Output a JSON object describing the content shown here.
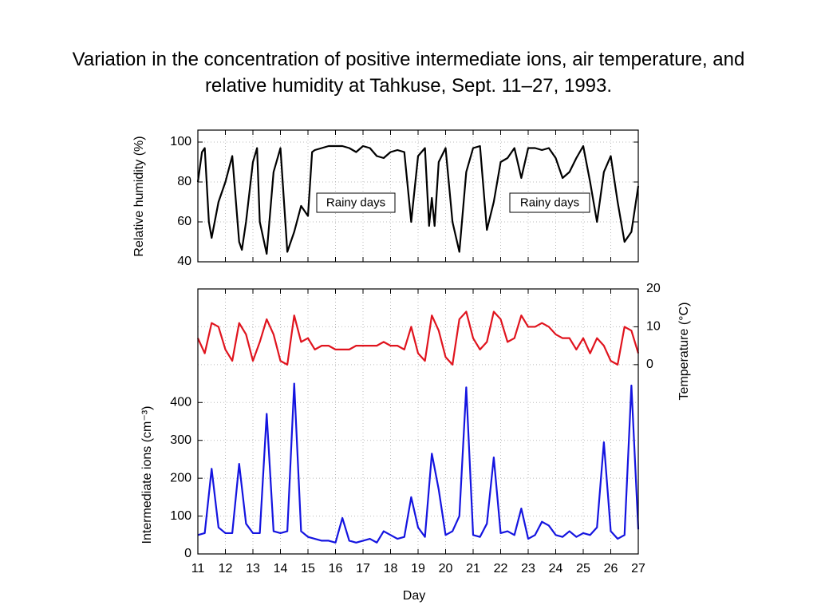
{
  "chart_data": [
    {
      "type": "line",
      "title": "Variation in the concentration of positive intermediate ions, air temperature, and relative humidity at Tahkuse, Sept. 11–27, 1993.",
      "ylabel": "Relative humidity  (%)",
      "x": [
        11,
        11.15,
        11.25,
        11.4,
        11.5,
        11.75,
        12,
        12.25,
        12.5,
        12.6,
        12.75,
        13,
        13.15,
        13.25,
        13.5,
        13.75,
        14,
        14.25,
        14.5,
        14.75,
        15,
        15.15,
        15.25,
        15.5,
        15.75,
        16,
        16.25,
        16.5,
        16.75,
        17,
        17.25,
        17.5,
        17.75,
        18,
        18.25,
        18.5,
        18.75,
        19,
        19.25,
        19.4,
        19.5,
        19.6,
        19.75,
        20,
        20.25,
        20.5,
        20.75,
        21,
        21.25,
        21.5,
        21.75,
        22,
        22.25,
        22.5,
        22.75,
        23,
        23.25,
        23.5,
        23.75,
        24,
        24.25,
        24.5,
        24.75,
        25,
        25.25,
        25.5,
        25.75,
        26,
        26.25,
        26.5,
        26.75,
        27
      ],
      "series": [
        {
          "name": "Relative humidity",
          "color": "#000000",
          "values": [
            80,
            95,
            97,
            60,
            52,
            70,
            80,
            93,
            50,
            46,
            60,
            90,
            97,
            60,
            44,
            85,
            97,
            45,
            55,
            68,
            63,
            95,
            96,
            97,
            98,
            98,
            98,
            97,
            95,
            98,
            97,
            93,
            92,
            95,
            96,
            95,
            60,
            93,
            97,
            58,
            72,
            58,
            90,
            97,
            60,
            45,
            85,
            97,
            98,
            56,
            70,
            90,
            92,
            97,
            82,
            97,
            97,
            96,
            97,
            92,
            82,
            85,
            92,
            98,
            80,
            60,
            85,
            93,
            70,
            50,
            55,
            78
          ]
        }
      ],
      "xlim": [
        11,
        27
      ],
      "xticks": [
        11,
        12,
        13,
        14,
        15,
        16,
        17,
        18,
        19,
        20,
        21,
        22,
        23,
        24,
        25,
        26,
        27
      ],
      "ylim": [
        40,
        106
      ],
      "yticks": [
        40,
        60,
        80,
        100
      ],
      "grid": true,
      "annotations": [
        "Rainy days",
        "Rainy days"
      ]
    },
    {
      "type": "line",
      "xlabel": "Day",
      "ylabel": "Intermediate ions  (cm⁻³)",
      "y2label": "Temperature  (°C)",
      "x": [
        11,
        11.25,
        11.5,
        11.75,
        12,
        12.25,
        12.5,
        12.75,
        13,
        13.25,
        13.5,
        13.75,
        14,
        14.25,
        14.5,
        14.75,
        15,
        15.25,
        15.5,
        15.75,
        16,
        16.25,
        16.5,
        16.75,
        17,
        17.25,
        17.5,
        17.75,
        18,
        18.25,
        18.5,
        18.75,
        19,
        19.25,
        19.5,
        19.75,
        20,
        20.25,
        20.5,
        20.75,
        21,
        21.25,
        21.5,
        21.75,
        22,
        22.25,
        22.5,
        22.75,
        23,
        23.25,
        23.5,
        23.75,
        24,
        24.25,
        24.5,
        24.75,
        25,
        25.25,
        25.5,
        25.75,
        26,
        26.25,
        26.5,
        26.75,
        27
      ],
      "series": [
        {
          "name": "Temperature",
          "color": "#e0141e",
          "axis": "y2",
          "values": [
            7,
            3,
            11,
            10,
            4,
            1,
            11,
            8,
            1,
            6,
            12,
            8,
            1,
            0,
            13,
            6,
            7,
            4,
            5,
            5,
            4,
            4,
            4,
            5,
            5,
            5,
            5,
            6,
            5,
            5,
            4,
            10,
            3,
            1,
            13,
            9,
            2,
            0,
            12,
            14,
            7,
            4,
            6,
            14,
            12,
            6,
            7,
            13,
            10,
            10,
            11,
            10,
            8,
            7,
            7,
            4,
            7,
            3,
            7,
            5,
            1,
            0,
            10,
            9,
            3
          ]
        },
        {
          "name": "Intermediate ions",
          "color": "#1414e0",
          "values": [
            50,
            55,
            225,
            70,
            55,
            55,
            238,
            80,
            55,
            55,
            370,
            60,
            55,
            60,
            450,
            60,
            45,
            40,
            35,
            35,
            30,
            95,
            35,
            30,
            35,
            40,
            30,
            60,
            50,
            40,
            45,
            150,
            70,
            45,
            265,
            170,
            50,
            60,
            100,
            440,
            50,
            45,
            80,
            255,
            55,
            60,
            50,
            120,
            40,
            50,
            85,
            75,
            50,
            45,
            60,
            45,
            55,
            50,
            70,
            295,
            60,
            40,
            50,
            445,
            65
          ]
        }
      ],
      "xlim": [
        11,
        27
      ],
      "xticks": [
        11,
        12,
        13,
        14,
        15,
        16,
        17,
        18,
        19,
        20,
        21,
        22,
        23,
        24,
        25,
        26,
        27
      ],
      "ylim": [
        0,
        700
      ],
      "yticks": [
        0,
        100,
        200,
        300,
        400
      ],
      "y2lim": [
        -50,
        20
      ],
      "y2ticks": [
        0,
        10,
        20
      ],
      "grid": true
    }
  ]
}
